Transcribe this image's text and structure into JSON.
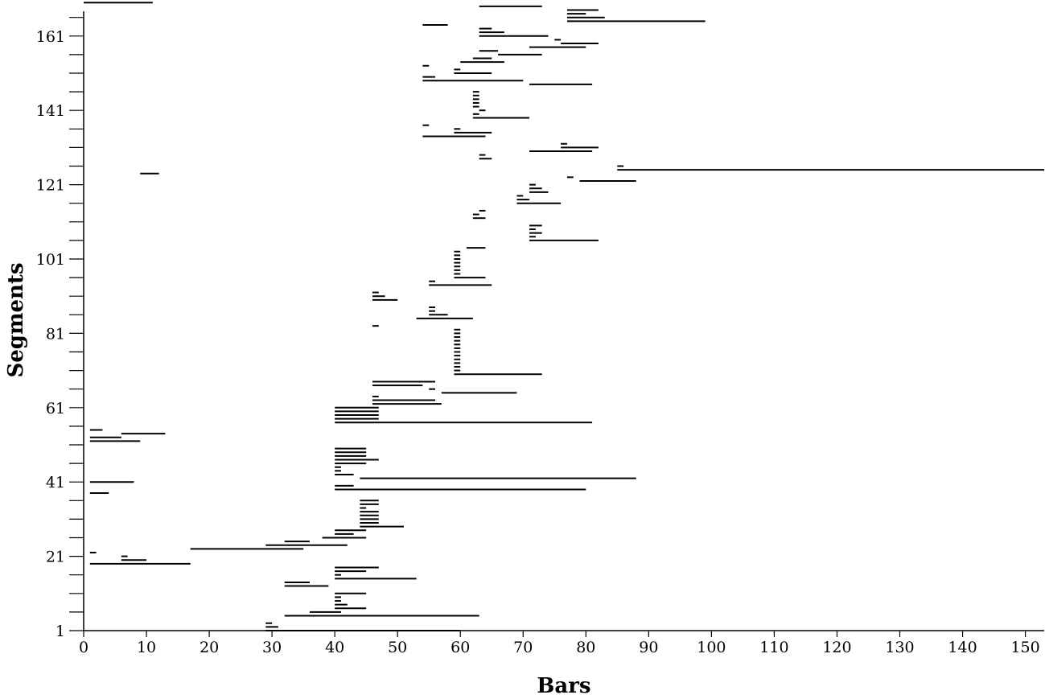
{
  "chart_data": {
    "type": "segment-range",
    "xlabel": "Bars",
    "ylabel": "Segments",
    "xlim": [
      0,
      153
    ],
    "ylim": [
      1,
      166.5
    ],
    "x_ticks": [
      0,
      10,
      20,
      30,
      40,
      50,
      60,
      70,
      80,
      90,
      100,
      110,
      120,
      130,
      140,
      150
    ],
    "y_tick_labels": [
      1,
      21,
      41,
      61,
      81,
      101,
      121,
      141,
      161
    ],
    "y_minor_step": 5,
    "grid": false,
    "segments": [
      [
        1,
        29,
        60
      ],
      [
        2,
        29,
        31
      ],
      [
        3,
        29,
        30
      ],
      [
        5,
        32,
        63
      ],
      [
        6,
        36,
        41
      ],
      [
        7,
        40,
        45
      ],
      [
        8,
        40,
        42
      ],
      [
        9,
        40,
        41
      ],
      [
        10,
        40,
        41
      ],
      [
        11,
        40,
        45
      ],
      [
        13,
        32,
        39
      ],
      [
        14,
        32,
        36
      ],
      [
        15,
        40,
        53
      ],
      [
        16,
        40,
        41
      ],
      [
        17,
        40,
        45
      ],
      [
        18,
        40,
        47
      ],
      [
        19,
        1,
        17
      ],
      [
        20,
        6,
        10
      ],
      [
        21,
        6,
        7
      ],
      [
        22,
        1,
        2
      ],
      [
        23,
        17,
        35
      ],
      [
        24,
        29,
        42
      ],
      [
        25,
        32,
        36
      ],
      [
        26,
        38,
        45
      ],
      [
        27,
        40,
        43
      ],
      [
        28,
        40,
        45
      ],
      [
        29,
        44,
        51
      ],
      [
        30,
        44,
        47
      ],
      [
        31,
        44,
        47
      ],
      [
        32,
        44,
        47
      ],
      [
        33,
        44,
        47
      ],
      [
        34,
        44,
        45
      ],
      [
        35,
        44,
        47
      ],
      [
        36,
        44,
        47
      ],
      [
        38,
        1,
        4
      ],
      [
        39,
        40,
        80
      ],
      [
        40,
        40,
        43
      ],
      [
        41,
        1,
        8
      ],
      [
        42,
        44,
        88
      ],
      [
        43,
        40,
        43
      ],
      [
        44,
        40,
        41
      ],
      [
        45,
        40,
        41
      ],
      [
        46,
        40,
        45
      ],
      [
        47,
        40,
        47
      ],
      [
        48,
        40,
        45
      ],
      [
        49,
        40,
        45
      ],
      [
        50,
        40,
        45
      ],
      [
        52,
        1,
        9
      ],
      [
        53,
        1,
        6
      ],
      [
        54,
        6,
        13
      ],
      [
        55,
        1,
        3
      ],
      [
        57,
        40,
        81
      ],
      [
        58,
        40,
        47
      ],
      [
        59,
        40,
        47
      ],
      [
        60,
        40,
        47
      ],
      [
        61,
        40,
        47
      ],
      [
        62,
        46,
        57
      ],
      [
        63,
        46,
        56
      ],
      [
        64,
        46,
        47
      ],
      [
        65,
        57,
        69
      ],
      [
        66,
        55,
        56
      ],
      [
        67,
        46,
        54
      ],
      [
        68,
        46,
        56
      ],
      [
        70,
        59,
        73
      ],
      [
        71,
        59,
        60
      ],
      [
        72,
        59,
        60
      ],
      [
        73,
        59,
        60
      ],
      [
        74,
        59,
        60
      ],
      [
        75,
        59,
        60
      ],
      [
        76,
        59,
        60
      ],
      [
        77,
        59,
        60
      ],
      [
        78,
        59,
        60
      ],
      [
        79,
        59,
        60
      ],
      [
        80,
        59,
        60
      ],
      [
        81,
        59,
        60
      ],
      [
        82,
        59,
        60
      ],
      [
        83,
        46,
        47
      ],
      [
        85,
        53,
        62
      ],
      [
        86,
        55,
        58
      ],
      [
        87,
        55,
        56
      ],
      [
        88,
        55,
        56
      ],
      [
        90,
        46,
        50
      ],
      [
        91,
        46,
        48
      ],
      [
        92,
        46,
        47
      ],
      [
        94,
        55,
        65
      ],
      [
        95,
        55,
        56
      ],
      [
        96,
        59,
        64
      ],
      [
        97,
        59,
        60
      ],
      [
        98,
        59,
        60
      ],
      [
        99,
        59,
        60
      ],
      [
        100,
        59,
        60
      ],
      [
        101,
        59,
        60
      ],
      [
        102,
        59,
        60
      ],
      [
        103,
        59,
        60
      ],
      [
        104,
        61,
        64
      ],
      [
        106,
        71,
        82
      ],
      [
        107,
        71,
        72
      ],
      [
        108,
        71,
        73
      ],
      [
        109,
        71,
        72
      ],
      [
        110,
        71,
        73
      ],
      [
        112,
        62,
        64
      ],
      [
        113,
        62,
        63
      ],
      [
        114,
        63,
        64
      ],
      [
        116,
        69,
        76
      ],
      [
        117,
        69,
        71
      ],
      [
        118,
        69,
        70
      ],
      [
        119,
        71,
        74
      ],
      [
        120,
        71,
        73
      ],
      [
        121,
        71,
        72
      ],
      [
        122,
        79,
        88
      ],
      [
        123,
        77,
        78
      ],
      [
        124,
        9,
        12
      ],
      [
        125,
        85,
        153
      ],
      [
        126,
        85,
        86
      ],
      [
        128,
        63,
        65
      ],
      [
        129,
        63,
        64
      ],
      [
        130,
        71,
        81
      ],
      [
        131,
        76,
        82
      ],
      [
        132,
        76,
        77
      ],
      [
        134,
        54,
        64
      ],
      [
        135,
        59,
        65
      ],
      [
        136,
        59,
        60
      ],
      [
        137,
        54,
        55
      ],
      [
        139,
        62,
        71
      ],
      [
        140,
        62,
        63
      ],
      [
        141,
        63,
        64
      ],
      [
        142,
        62,
        63
      ],
      [
        143,
        62,
        63
      ],
      [
        144,
        62,
        63
      ],
      [
        145,
        62,
        63
      ],
      [
        146,
        62,
        63
      ],
      [
        148,
        71,
        81
      ],
      [
        149,
        54,
        70
      ],
      [
        150,
        54,
        56
      ],
      [
        151,
        59,
        65
      ],
      [
        152,
        59,
        60
      ],
      [
        153,
        54,
        55
      ],
      [
        154,
        60,
        67
      ],
      [
        155,
        62,
        65
      ],
      [
        156,
        66,
        73
      ],
      [
        157,
        63,
        66
      ],
      [
        158,
        71,
        80
      ],
      [
        159,
        76,
        82
      ],
      [
        160,
        75,
        76
      ],
      [
        161,
        63,
        74
      ],
      [
        162,
        63,
        67
      ],
      [
        163,
        63,
        65
      ],
      [
        164,
        54,
        58
      ],
      [
        165,
        77,
        99
      ],
      [
        166,
        77,
        83
      ],
      [
        167,
        77,
        80
      ],
      [
        168,
        77,
        82
      ],
      [
        169,
        63,
        73
      ],
      [
        170,
        0,
        11
      ]
    ]
  }
}
